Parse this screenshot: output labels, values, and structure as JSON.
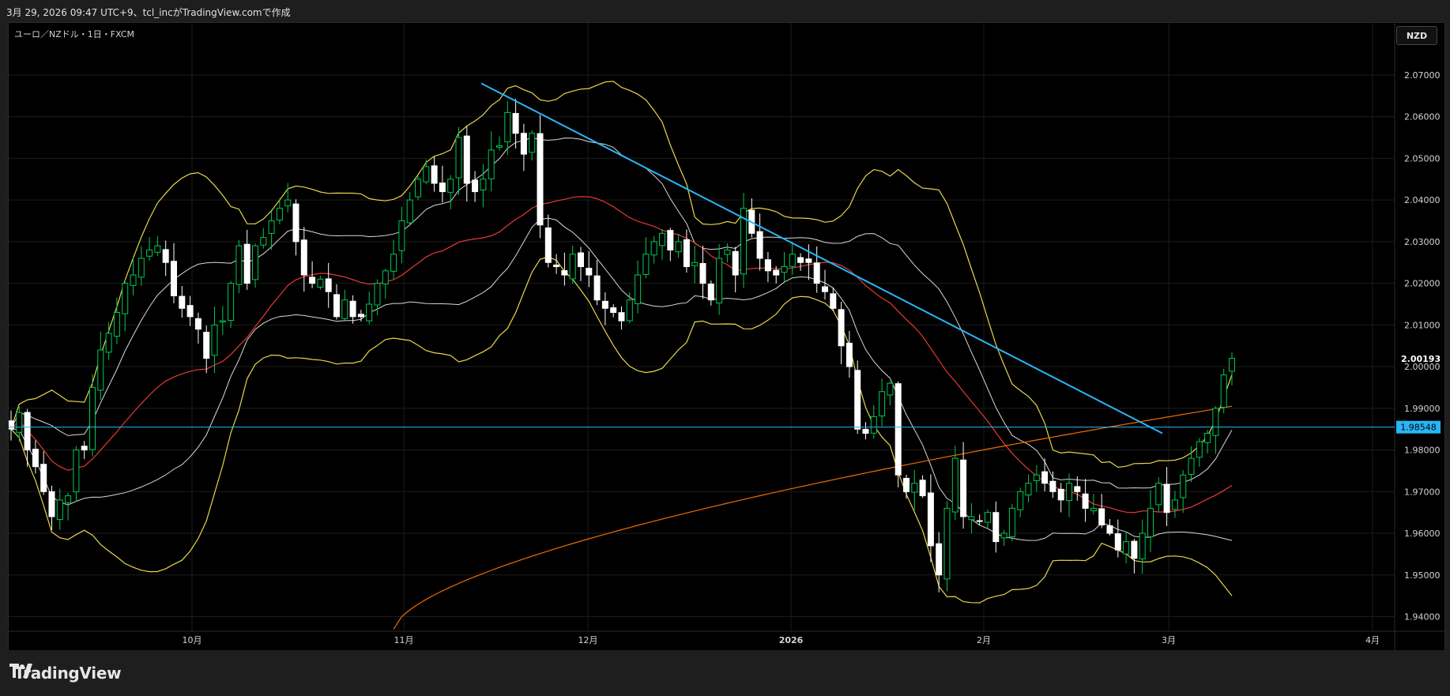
{
  "header": {
    "caption": "3月 29, 2026 09:47 UTC+9、tcl_incがTradingView.comで作成"
  },
  "symbol_label": "ユーロ／NZドル・1日・FXCM",
  "currency_badge": "NZD",
  "brand": "TradingView",
  "colors": {
    "background": "#000000",
    "up_candle": "#00c851",
    "down_candle": "#ffffff",
    "trendline": "#29b6f6",
    "hline": "#29b6f6",
    "bb_outer": "#e8d54a",
    "bb_inner": "#d8d8d8",
    "ma_red": "#e53935",
    "ma_orange": "#ef6c00"
  },
  "chart_data": {
    "type": "candlestick",
    "title": "ユーロ／NZドル・1日・FXCM",
    "x_ticks": [
      "10月",
      "11月",
      "12月",
      "2026",
      "2月",
      "3月",
      "4月"
    ],
    "y_ticks": [
      "2.07000",
      "2.06000",
      "2.05000",
      "2.04000",
      "2.03000",
      "2.02000",
      "2.01000",
      "2.00000",
      "1.99000",
      "1.98000",
      "1.97000",
      "1.96000",
      "1.95000",
      "1.94000"
    ],
    "ylim": [
      1.9365,
      2.0825
    ],
    "last_price": "2.00193",
    "horizontal_line": {
      "value": 1.98548,
      "label": "1.98548"
    },
    "trendline": {
      "from": {
        "date": "2025-11-25",
        "value": 2.068
      },
      "to": {
        "date": "2026-03-26",
        "value": 1.984
      }
    },
    "indicators": [
      "Bollinger Bands (outer)",
      "Bollinger Bands (inner)",
      "Moving Average (red)",
      "Moving Average (orange)"
    ],
    "close_series_approx": [
      1.985,
      1.989,
      1.98,
      1.976,
      1.97,
      1.964,
      1.968,
      1.969,
      1.98,
      1.98,
      1.995,
      2.004,
      2.008,
      2.013,
      2.02,
      2.022,
      2.026,
      2.028,
      2.029,
      2.025,
      2.017,
      2.014,
      2.012,
      2.009,
      2.002,
      2.01,
      2.011,
      2.02,
      2.029,
      2.02,
      2.029,
      2.031,
      2.035,
      2.038,
      2.04,
      2.03,
      2.022,
      2.02,
      2.021,
      2.018,
      2.012,
      2.016,
      2.012,
      2.012,
      2.015,
      2.02,
      2.023,
      2.027,
      2.035,
      2.04,
      2.045,
      2.048,
      2.044,
      2.042,
      2.045,
      2.055,
      2.044,
      2.042,
      2.045,
      2.052,
      2.053,
      2.061,
      2.056,
      2.051,
      2.056,
      2.034,
      2.025,
      2.024,
      2.022,
      2.027,
      2.024,
      2.022,
      2.016,
      2.014,
      2.013,
      2.011,
      2.016,
      2.022,
      2.027,
      2.03,
      2.032,
      2.028,
      2.03,
      2.024,
      2.025,
      2.02,
      2.016,
      2.026,
      2.028,
      2.022,
      2.038,
      2.032,
      2.026,
      2.023,
      2.022,
      2.024,
      2.027,
      2.025,
      2.025,
      2.02,
      2.018,
      2.014,
      2.005,
      2.0,
      1.985,
      1.984,
      1.988,
      1.994,
      1.996,
      1.974,
      1.97,
      1.972,
      1.969,
      1.957,
      1.95,
      1.966,
      1.978,
      1.964,
      1.964,
      1.963,
      1.965,
      1.958,
      1.96,
      1.966,
      1.97,
      1.972,
      1.974,
      1.972,
      1.97,
      1.968,
      1.972,
      1.97,
      1.966,
      1.966,
      1.962,
      1.96,
      1.956,
      1.958,
      1.954,
      1.96,
      1.966,
      1.972,
      1.965,
      1.968,
      1.974,
      1.978,
      1.982,
      1.984,
      1.99,
      1.998,
      2.002
    ]
  }
}
